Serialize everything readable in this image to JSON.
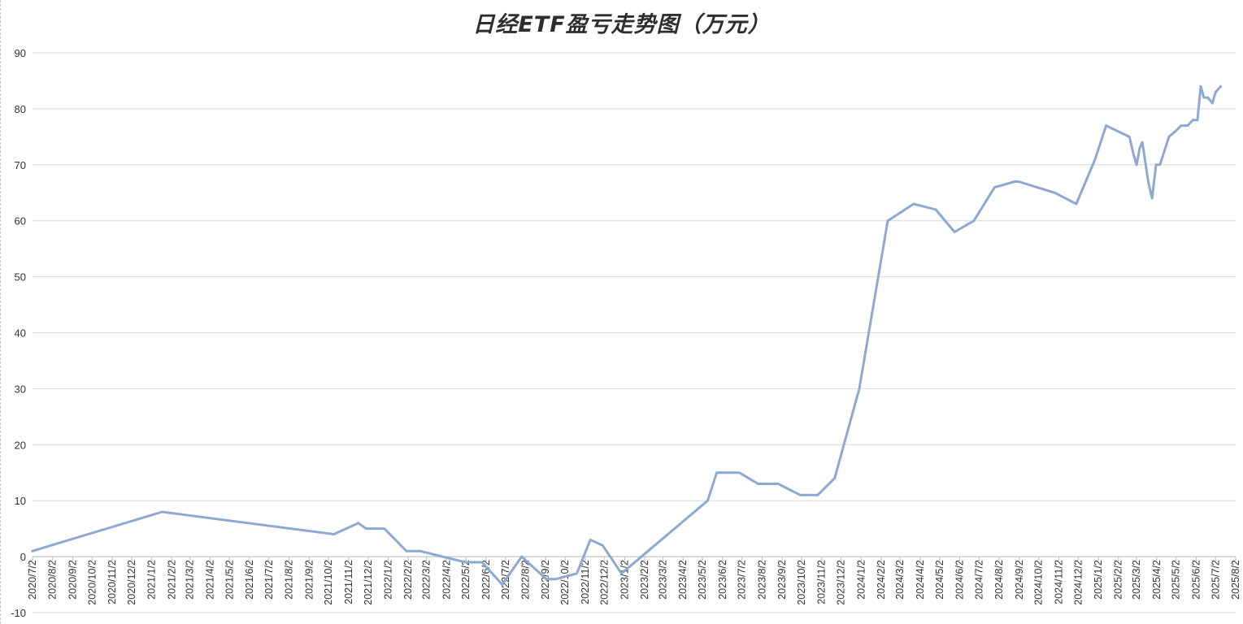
{
  "chart_data": {
    "type": "line",
    "title": "日经ETF盈亏走势图（万元）",
    "xlabel": "",
    "ylabel": "",
    "ylim": [
      -10,
      90
    ],
    "yticks": [
      -10,
      0,
      10,
      20,
      30,
      40,
      50,
      60,
      70,
      80,
      90
    ],
    "grid": true,
    "legend": "none",
    "line_color": "#8ea9d1",
    "x_tick_labels": [
      "2020/7/2",
      "2020/8/2",
      "2020/9/2",
      "2020/10/2",
      "2020/11/2",
      "2020/12/2",
      "2021/1/2",
      "2021/2/2",
      "2021/3/2",
      "2021/4/2",
      "2021/5/2",
      "2021/6/2",
      "2021/7/2",
      "2021/8/2",
      "2021/9/2",
      "2021/10/2",
      "2021/11/2",
      "2021/12/2",
      "2022/1/2",
      "2022/2/2",
      "2022/3/2",
      "2022/4/2",
      "2022/5/2",
      "2022/6/2",
      "2022/7/2",
      "2022/8/2",
      "2022/9/2",
      "2022/10/2",
      "2022/11/2",
      "2022/12/2",
      "2023/1/2",
      "2023/2/2",
      "2023/3/2",
      "2023/4/2",
      "2023/5/2",
      "2023/6/2",
      "2023/7/2",
      "2023/8/2",
      "2023/9/2",
      "2023/10/2",
      "2023/11/2",
      "2023/12/2",
      "2024/1/2",
      "2024/2/2",
      "2024/3/2",
      "2024/4/2",
      "2024/5/2",
      "2024/6/2",
      "2024/7/2",
      "2024/8/2",
      "2024/9/2",
      "2024/10/2",
      "2024/11/2",
      "2024/12/2",
      "2025/1/2",
      "2025/2/2",
      "2025/3/2",
      "2025/4/2",
      "2025/5/2",
      "2025/6/2",
      "2025/7/2",
      "2025/8/2"
    ],
    "series": [
      {
        "points": [
          {
            "x": "2020/7/2",
            "y": 1
          },
          {
            "x": "2021/1/18",
            "y": 8
          },
          {
            "x": "2021/10/10",
            "y": 4
          },
          {
            "x": "2021/11/17",
            "y": 6
          },
          {
            "x": "2021/11/29",
            "y": 5
          },
          {
            "x": "2021/12/27",
            "y": 5
          },
          {
            "x": "2022/1/30",
            "y": 1
          },
          {
            "x": "2022/2/20",
            "y": 1
          },
          {
            "x": "2022/5/1",
            "y": -1
          },
          {
            "x": "2022/5/27",
            "y": -1
          },
          {
            "x": "2022/6/27",
            "y": -5
          },
          {
            "x": "2022/7/27",
            "y": 0
          },
          {
            "x": "2022/9/3",
            "y": -4
          },
          {
            "x": "2022/9/18",
            "y": -4
          },
          {
            "x": "2022/10/20",
            "y": -3
          },
          {
            "x": "2022/11/10",
            "y": 3
          },
          {
            "x": "2022/11/29",
            "y": 2
          },
          {
            "x": "2022/12/28",
            "y": -3
          },
          {
            "x": "2023/5/10",
            "y": 10
          },
          {
            "x": "2023/5/24",
            "y": 15
          },
          {
            "x": "2023/6/28",
            "y": 15
          },
          {
            "x": "2023/7/27",
            "y": 13
          },
          {
            "x": "2023/8/27",
            "y": 13
          },
          {
            "x": "2023/9/30",
            "y": 11
          },
          {
            "x": "2023/10/27",
            "y": 11
          },
          {
            "x": "2023/11/22",
            "y": 14
          },
          {
            "x": "2023/12/30",
            "y": 30
          },
          {
            "x": "2024/2/12",
            "y": 60
          },
          {
            "x": "2024/3/23",
            "y": 63
          },
          {
            "x": "2024/4/26",
            "y": 62
          },
          {
            "x": "2024/5/25",
            "y": 58
          },
          {
            "x": "2024/6/24",
            "y": 60
          },
          {
            "x": "2024/7/26",
            "y": 66
          },
          {
            "x": "2024/8/26",
            "y": 67
          },
          {
            "x": "2024/9/1",
            "y": 67
          },
          {
            "x": "2024/10/27",
            "y": 65
          },
          {
            "x": "2024/11/29",
            "y": 63
          },
          {
            "x": "2024/12/28",
            "y": 71
          },
          {
            "x": "2025/1/14",
            "y": 77
          },
          {
            "x": "2025/2/19",
            "y": 75
          },
          {
            "x": "2025/2/25",
            "y": 72
          },
          {
            "x": "2025/3/2",
            "y": 70
          },
          {
            "x": "2025/3/7",
            "y": 73
          },
          {
            "x": "2025/3/11",
            "y": 74
          },
          {
            "x": "2025/3/20",
            "y": 67
          },
          {
            "x": "2025/3/26",
            "y": 64
          },
          {
            "x": "2025/4/1",
            "y": 70
          },
          {
            "x": "2025/4/7",
            "y": 70
          },
          {
            "x": "2025/4/21",
            "y": 75
          },
          {
            "x": "2025/5/1",
            "y": 76
          },
          {
            "x": "2025/5/10",
            "y": 77
          },
          {
            "x": "2025/5/20",
            "y": 77
          },
          {
            "x": "2025/5/28",
            "y": 78
          },
          {
            "x": "2025/6/4",
            "y": 78
          },
          {
            "x": "2025/6/9",
            "y": 84
          },
          {
            "x": "2025/6/14",
            "y": 82
          },
          {
            "x": "2025/6/20",
            "y": 82
          },
          {
            "x": "2025/6/27",
            "y": 81
          },
          {
            "x": "2025/7/2",
            "y": 83
          },
          {
            "x": "2025/7/10",
            "y": 84
          }
        ]
      }
    ]
  }
}
